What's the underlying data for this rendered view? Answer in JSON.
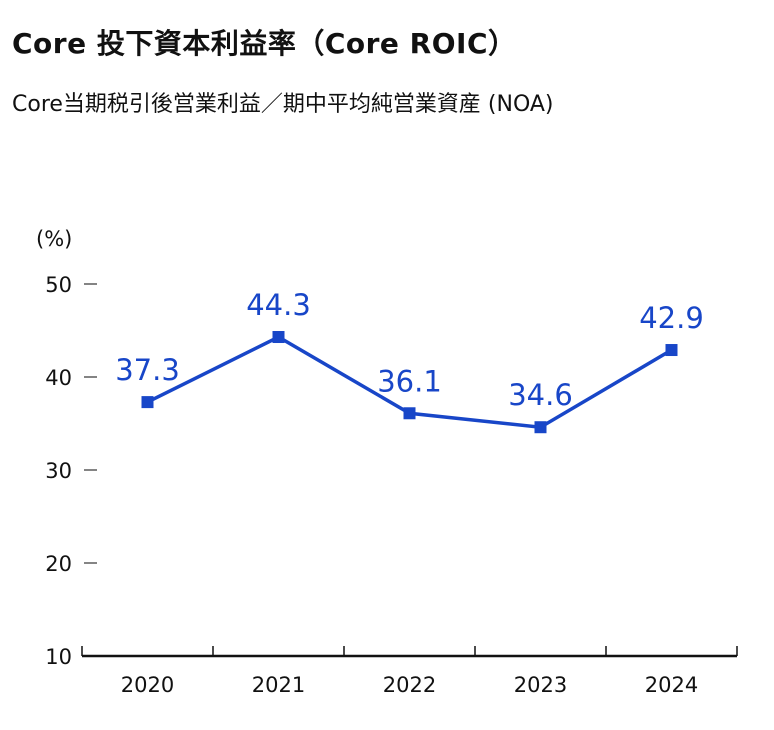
{
  "title": "Core 投下資本利益率（Core ROIC）",
  "subtitle": "Core当期税引後営業利益／期中平均純営業資産 (NOA)",
  "colors": {
    "series": "#1846c8",
    "axis": "#111111"
  },
  "chart_data": {
    "type": "line",
    "title": "Core 投下資本利益率（Core ROIC）",
    "subtitle": "Core当期税引後営業利益／期中平均純営業資産 (NOA)",
    "ylabel": "(%)",
    "xlabel": "",
    "categories": [
      "2020",
      "2021",
      "2022",
      "2023",
      "2024"
    ],
    "series": [
      {
        "values": [
          37.3,
          44.3,
          36.1,
          34.6,
          42.9
        ],
        "labels": [
          "37.3",
          "44.3",
          "36.1",
          "34.6",
          "42.9"
        ]
      }
    ],
    "ylim": [
      10,
      50
    ],
    "yticks": [
      "10",
      "20",
      "30",
      "40",
      "50"
    ],
    "grid": false,
    "marker": "square"
  }
}
